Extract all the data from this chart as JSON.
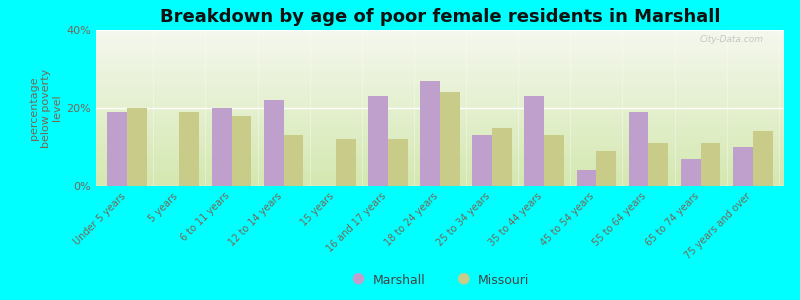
{
  "title": "Breakdown by age of poor female residents in Marshall",
  "ylabel": "percentage\nbelow poverty\nlevel",
  "categories": [
    "Under 5 years",
    "5 years",
    "6 to 11 years",
    "12 to 14 years",
    "15 years",
    "16 and 17 years",
    "18 to 24 years",
    "25 to 34 years",
    "35 to 44 years",
    "45 to 54 years",
    "55 to 64 years",
    "65 to 74 years",
    "75 years and over"
  ],
  "marshall_values": [
    19,
    0,
    20,
    22,
    0,
    23,
    27,
    13,
    23,
    4,
    19,
    7,
    10
  ],
  "missouri_values": [
    20,
    19,
    18,
    13,
    12,
    12,
    24,
    15,
    13,
    9,
    11,
    11,
    14
  ],
  "marshall_color": "#bf9fcc",
  "missouri_color": "#c8cc88",
  "figure_bg": "#00ffff",
  "plot_bg_color_top": "#d4e8b0",
  "plot_bg_color_bottom": "#f5f8ee",
  "ylim": [
    0,
    40
  ],
  "yticks": [
    0,
    20,
    40
  ],
  "ytick_labels": [
    "0%",
    "20%",
    "40%"
  ],
  "bar_width": 0.38,
  "legend_labels": [
    "Marshall",
    "Missouri"
  ],
  "title_fontsize": 13,
  "axis_tick_fontsize": 8,
  "ylabel_fontsize": 8,
  "label_color": "#776655",
  "title_color": "#111111",
  "watermark": "City-Data.com"
}
